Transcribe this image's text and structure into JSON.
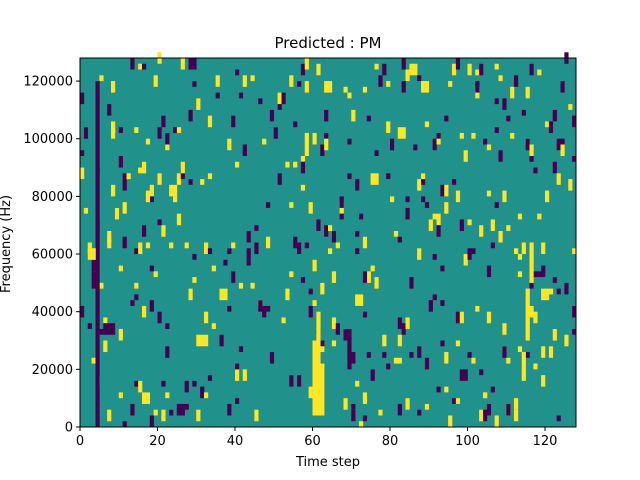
{
  "chart_data": {
    "type": "heatmap",
    "title": "Predicted : PM",
    "xlabel": "Time step",
    "ylabel": "Frequency (Hz)",
    "xlim": [
      0,
      128
    ],
    "ylim": [
      0,
      128000
    ],
    "x_ticks": [
      0,
      20,
      40,
      60,
      80,
      100,
      120
    ],
    "y_ticks": [
      0,
      20000,
      40000,
      60000,
      80000,
      100000,
      120000
    ],
    "x_tick_labels": [
      "0",
      "20",
      "40",
      "60",
      "80",
      "100",
      "120"
    ],
    "y_tick_labels": [
      "0",
      "20000",
      "40000",
      "60000",
      "80000",
      "100000",
      "120000"
    ],
    "n_time": 128,
    "n_freq": 64,
    "bin_height_hz": 2000,
    "colormap": {
      "low": "#440154",
      "mid": "#21918c",
      "high": "#fde725"
    },
    "background_value": "mid",
    "grid": false,
    "low_cells": [
      {
        "t": 4,
        "f0": 0,
        "f1": 120000
      },
      {
        "t": 6,
        "f0": 32000,
        "f1": 36000
      },
      {
        "t": 7,
        "f0": 32000,
        "f1": 36000
      },
      {
        "t": 8,
        "f0": 32000,
        "f1": 36000
      },
      {
        "t": 13,
        "f0": 4000,
        "f1": 8000
      },
      {
        "t": 18,
        "f0": 0,
        "f1": 4000
      },
      {
        "t": 25,
        "f0": 4000,
        "f1": 8000
      },
      {
        "t": 26,
        "f0": 4000,
        "f1": 8000
      },
      {
        "t": 59,
        "f0": 38000,
        "f1": 42000
      },
      {
        "t": 68,
        "f0": 30000,
        "f1": 34000
      },
      {
        "t": 69,
        "f0": 20000,
        "f1": 34000
      },
      {
        "t": 73,
        "f0": 50000,
        "f1": 54000
      },
      {
        "t": 75,
        "f0": 16000,
        "f1": 20000
      },
      {
        "t": 89,
        "f0": 20000,
        "f1": 24000
      },
      {
        "t": 98,
        "f0": 16000,
        "f1": 20000
      },
      {
        "t": 99,
        "f0": 16000,
        "f1": 20000
      },
      {
        "t": 125,
        "f0": 46000,
        "f1": 50000
      },
      {
        "t": 127,
        "f0": 38000,
        "f1": 42000
      }
    ],
    "high_cells": [
      {
        "t": 2,
        "f0": 58000,
        "f1": 62000
      },
      {
        "t": 3,
        "f0": 58000,
        "f1": 62000
      },
      {
        "t": 16,
        "f0": 8000,
        "f1": 12000
      },
      {
        "t": 17,
        "f0": 8000,
        "f1": 12000
      },
      {
        "t": 17,
        "f0": 78000,
        "f1": 82000
      },
      {
        "t": 31,
        "f0": 28000,
        "f1": 32000
      },
      {
        "t": 32,
        "f0": 28000,
        "f1": 32000
      },
      {
        "t": 42,
        "f0": 16000,
        "f1": 20000
      },
      {
        "t": 60,
        "f0": 4000,
        "f1": 30000
      },
      {
        "t": 61,
        "f0": 4000,
        "f1": 40000
      },
      {
        "t": 62,
        "f0": 4000,
        "f1": 22000
      },
      {
        "t": 63,
        "f0": 116000,
        "f1": 120000
      },
      {
        "t": 64,
        "f0": 116000,
        "f1": 120000
      },
      {
        "t": 71,
        "f0": 42000,
        "f1": 46000
      },
      {
        "t": 72,
        "f0": 42000,
        "f1": 46000
      },
      {
        "t": 82,
        "f0": 100000,
        "f1": 104000
      },
      {
        "t": 83,
        "f0": 100000,
        "f1": 104000
      },
      {
        "t": 114,
        "f0": 16000,
        "f1": 26000
      },
      {
        "t": 115,
        "f0": 34000,
        "f1": 48000
      },
      {
        "t": 116,
        "f0": 50000,
        "f1": 64000
      },
      {
        "t": 119,
        "f0": 44000,
        "f1": 48000
      },
      {
        "t": 120,
        "f0": 44000,
        "f1": 48000
      }
    ]
  }
}
